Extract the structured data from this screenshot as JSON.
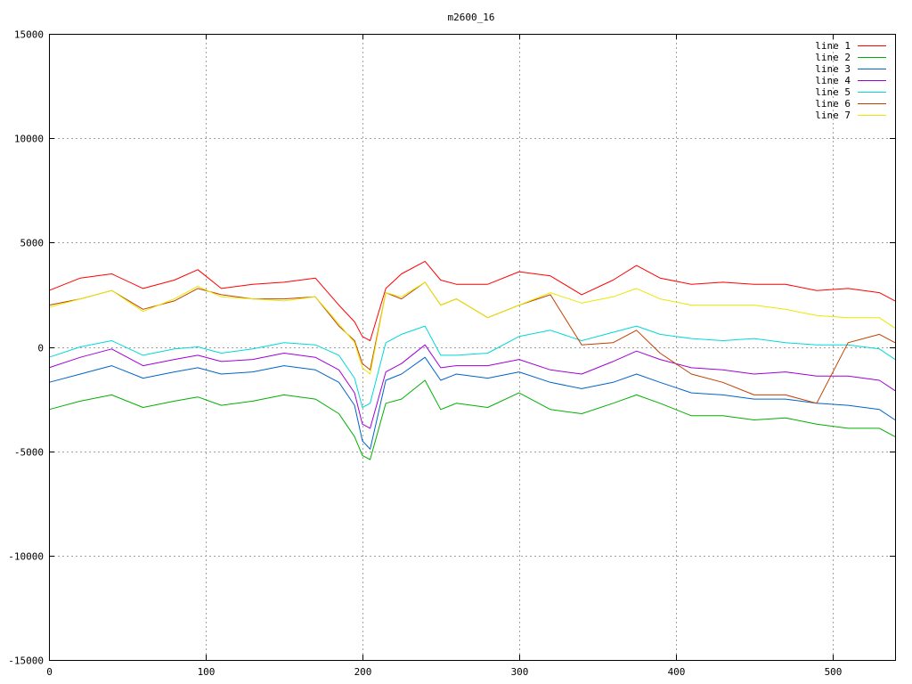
{
  "chart_data": {
    "type": "line",
    "title": "m2600_16",
    "xlabel": "",
    "ylabel": "",
    "xlim": [
      0,
      540
    ],
    "ylim": [
      -15000,
      15000
    ],
    "xticks": [
      0,
      100,
      200,
      300,
      400,
      500
    ],
    "yticks": [
      -15000,
      -10000,
      -5000,
      0,
      5000,
      10000,
      15000
    ],
    "x_tick_labels": [
      "0",
      "100",
      "200",
      "300",
      "400",
      "500"
    ],
    "y_tick_labels": [
      "-15000",
      "-10000",
      "-5000",
      "0",
      "5000",
      "10000",
      "15000"
    ],
    "grid": true,
    "legend_position": "top-right",
    "x": [
      0,
      20,
      40,
      60,
      80,
      95,
      110,
      130,
      150,
      170,
      185,
      195,
      200,
      205,
      215,
      225,
      240,
      250,
      260,
      280,
      300,
      320,
      340,
      360,
      375,
      390,
      410,
      430,
      450,
      470,
      490,
      510,
      530,
      540
    ],
    "series": [
      {
        "name": "line 1",
        "color": "#ff0000",
        "values": [
          2700,
          3300,
          3500,
          2800,
          3200,
          3700,
          2800,
          3000,
          3100,
          3300,
          2000,
          1200,
          500,
          300,
          2800,
          3500,
          4100,
          3200,
          3000,
          3000,
          3600,
          3400,
          2500,
          3200,
          3900,
          3300,
          3000,
          3100,
          3000,
          3000,
          2700,
          2800,
          2600,
          2200
        ]
      },
      {
        "name": "line 2",
        "color": "#00b000",
        "values": [
          -3000,
          -2600,
          -2300,
          -2900,
          -2600,
          -2400,
          -2800,
          -2600,
          -2300,
          -2500,
          -3200,
          -4300,
          -5200,
          -5400,
          -2700,
          -2500,
          -1600,
          -3000,
          -2700,
          -2900,
          -2200,
          -3000,
          -3200,
          -2700,
          -2300,
          -2700,
          -3300,
          -3300,
          -3500,
          -3400,
          -3700,
          -3900,
          -3900,
          -4300
        ]
      },
      {
        "name": "line 3",
        "color": "#0064c8",
        "values": [
          -1700,
          -1300,
          -900,
          -1500,
          -1200,
          -1000,
          -1300,
          -1200,
          -900,
          -1100,
          -1700,
          -2800,
          -4500,
          -4900,
          -1600,
          -1300,
          -500,
          -1600,
          -1300,
          -1500,
          -1200,
          -1700,
          -2000,
          -1700,
          -1300,
          -1700,
          -2200,
          -2300,
          -2500,
          -2500,
          -2700,
          -2800,
          -3000,
          -3500
        ]
      },
      {
        "name": "line 4",
        "color": "#a000d8",
        "values": [
          -1000,
          -500,
          -100,
          -900,
          -600,
          -400,
          -700,
          -600,
          -300,
          -500,
          -1100,
          -2200,
          -3700,
          -3900,
          -1200,
          -800,
          100,
          -1000,
          -900,
          -900,
          -600,
          -1100,
          -1300,
          -700,
          -200,
          -600,
          -1000,
          -1100,
          -1300,
          -1200,
          -1400,
          -1400,
          -1600,
          -2100
        ]
      },
      {
        "name": "line 5",
        "color": "#00d8d8",
        "values": [
          -500,
          0,
          300,
          -400,
          -100,
          0,
          -300,
          -100,
          200,
          100,
          -400,
          -1500,
          -2900,
          -2700,
          200,
          600,
          1000,
          -400,
          -400,
          -300,
          500,
          800,
          300,
          700,
          1000,
          600,
          400,
          300,
          400,
          200,
          100,
          100,
          -100,
          -600
        ]
      },
      {
        "name": "line 6",
        "color": "#c04000",
        "values": [
          2000,
          2300,
          2700,
          1800,
          2200,
          2800,
          2500,
          2300,
          2300,
          2400,
          1000,
          300,
          -800,
          -1100,
          2600,
          2300,
          3100,
          2000,
          2300,
          1400,
          2000,
          2500,
          100,
          200,
          800,
          -300,
          -1300,
          -1700,
          -2300,
          -2300,
          -2700,
          200,
          600,
          200
        ]
      },
      {
        "name": "line 7",
        "color": "#e8e800",
        "values": [
          1900,
          2300,
          2700,
          1700,
          2300,
          2900,
          2400,
          2300,
          2200,
          2400,
          1100,
          200,
          -1000,
          -1300,
          2600,
          2400,
          3100,
          2000,
          2300,
          1400,
          2000,
          2600,
          2100,
          2400,
          2800,
          2300,
          2000,
          2000,
          2000,
          1800,
          1500,
          1400,
          1400,
          900
        ]
      }
    ]
  }
}
